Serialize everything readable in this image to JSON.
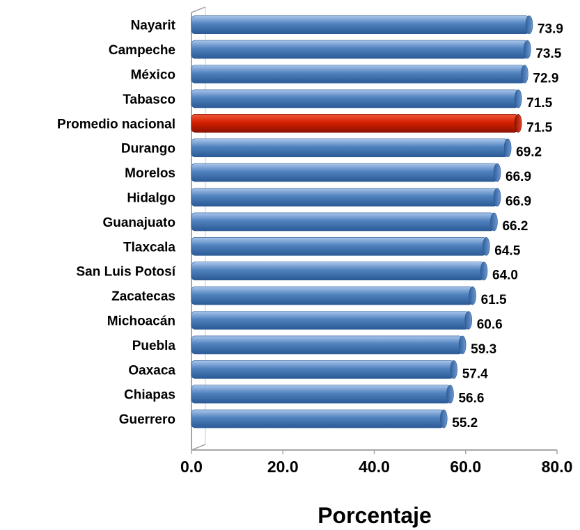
{
  "chart_data": {
    "type": "bar",
    "orientation": "horizontal",
    "categories": [
      "Nayarit",
      "Campeche",
      "México",
      "Tabasco",
      "Promedio nacional",
      "Durango",
      "Morelos",
      "Hidalgo",
      "Guanajuato",
      "Tlaxcala",
      "San Luis Potosí",
      "Zacatecas",
      "Michoacán",
      "Puebla",
      "Oaxaca",
      "Chiapas",
      "Guerrero"
    ],
    "values": [
      73.9,
      73.5,
      72.9,
      71.5,
      71.5,
      69.2,
      66.9,
      66.9,
      66.2,
      64.5,
      64.0,
      61.5,
      60.6,
      59.3,
      57.4,
      56.6,
      55.2
    ],
    "value_labels": [
      "73.9",
      "73.5",
      "72.9",
      "71.5",
      "71.5",
      "69.2",
      "66.9",
      "66.9",
      "66.2",
      "64.5",
      "64.0",
      "61.5",
      "60.6",
      "59.3",
      "57.4",
      "56.6",
      "55.2"
    ],
    "highlight_category": "Promedio nacional",
    "xlabel": "Porcentaje",
    "xlim": [
      0,
      80
    ],
    "xticks": [
      "0.0",
      "20.0",
      "40.0",
      "60.0",
      "80.0"
    ],
    "grid": false,
    "colors": {
      "bar": "#4f81bd",
      "highlight": "#c00000"
    }
  }
}
